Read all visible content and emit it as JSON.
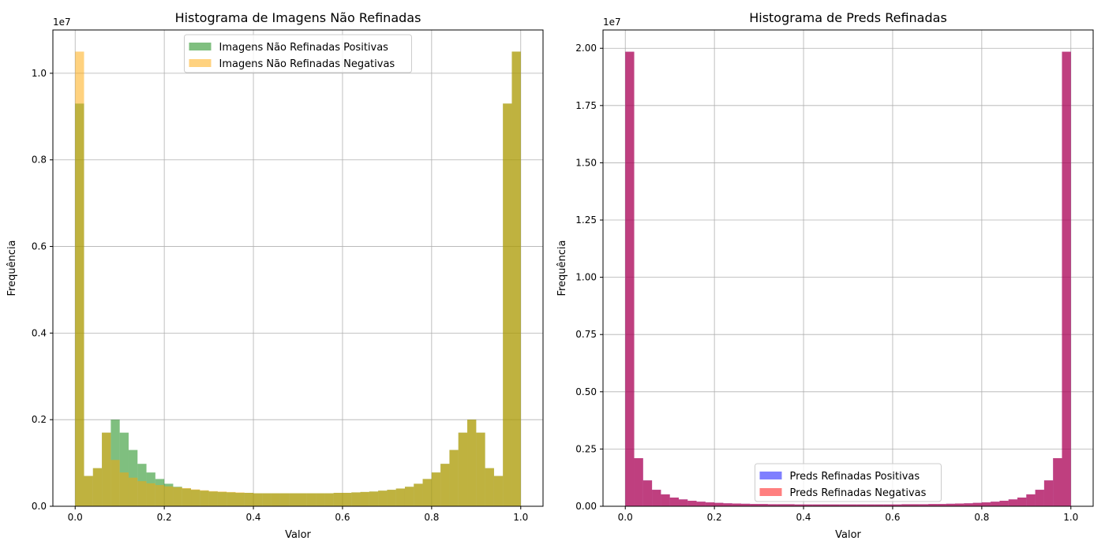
{
  "chart_data": [
    {
      "type": "bar",
      "title": "Histograma de Imagens Não Refinadas",
      "xlabel": "Valor",
      "ylabel": "Frequência",
      "y_offset_label": "1e7",
      "xlim": [
        -0.05,
        1.05
      ],
      "ylim": [
        0,
        1.1
      ],
      "xticks": [
        0.0,
        0.2,
        0.4,
        0.6,
        0.8,
        1.0
      ],
      "xtick_labels": [
        "0.0",
        "0.2",
        "0.4",
        "0.6",
        "0.8",
        "1.0"
      ],
      "yticks": [
        0.0,
        0.2,
        0.4,
        0.6,
        0.8,
        1.0
      ],
      "ytick_labels": [
        "0.0",
        "0.2",
        "0.4",
        "0.6",
        "0.8",
        "1.0"
      ],
      "grid": true,
      "legend_position": "top-center",
      "bins": 50,
      "series": [
        {
          "name": "Imagens Não Refinadas Positivas",
          "color": "#008000",
          "opacity": 0.5,
          "values": [
            0.93,
            0.07,
            0.088,
            0.17,
            0.2,
            0.17,
            0.13,
            0.098,
            0.078,
            0.063,
            0.052,
            0.045,
            0.041,
            0.038,
            0.036,
            0.034,
            0.033,
            0.032,
            0.031,
            0.031,
            0.03,
            0.03,
            0.03,
            0.03,
            0.03,
            0.03,
            0.03,
            0.03,
            0.03,
            0.031,
            0.031,
            0.032,
            0.033,
            0.034,
            0.036,
            0.038,
            0.041,
            0.045,
            0.052,
            0.063,
            0.078,
            0.098,
            0.13,
            0.17,
            0.2,
            0.17,
            0.088,
            0.07,
            0.93,
            1.05
          ]
        },
        {
          "name": "Imagens Não Refinadas Negativas",
          "color": "#FFA500",
          "opacity": 0.5,
          "values": [
            1.05,
            0.07,
            0.088,
            0.17,
            0.107,
            0.078,
            0.066,
            0.058,
            0.053,
            0.049,
            0.046,
            0.044,
            0.042,
            0.039,
            0.037,
            0.035,
            0.034,
            0.033,
            0.032,
            0.031,
            0.03,
            0.03,
            0.03,
            0.03,
            0.03,
            0.03,
            0.03,
            0.03,
            0.03,
            0.031,
            0.031,
            0.032,
            0.033,
            0.034,
            0.036,
            0.038,
            0.041,
            0.045,
            0.052,
            0.063,
            0.078,
            0.098,
            0.13,
            0.17,
            0.2,
            0.17,
            0.088,
            0.07,
            0.93,
            1.05
          ]
        }
      ]
    },
    {
      "type": "bar",
      "title": "Histograma de Preds Refinadas",
      "xlabel": "Valor",
      "ylabel": "Frequência",
      "y_offset_label": "1e7",
      "xlim": [
        -0.05,
        1.05
      ],
      "ylim": [
        0,
        2.08
      ],
      "xticks": [
        0.0,
        0.2,
        0.4,
        0.6,
        0.8,
        1.0
      ],
      "xtick_labels": [
        "0.0",
        "0.2",
        "0.4",
        "0.6",
        "0.8",
        "1.0"
      ],
      "yticks": [
        0.0,
        0.25,
        0.5,
        0.75,
        1.0,
        1.25,
        1.5,
        1.75,
        2.0
      ],
      "ytick_labels": [
        "0.00",
        "0.25",
        "0.50",
        "0.75",
        "1.00",
        "1.25",
        "1.50",
        "1.75",
        "2.00"
      ],
      "grid": true,
      "legend_position": "lower-center",
      "bins": 50,
      "series": [
        {
          "name": "Preds Refinadas Positivas",
          "color": "#0000FF",
          "opacity": 0.5,
          "values": [
            1.985,
            0.21,
            0.113,
            0.072,
            0.052,
            0.038,
            0.03,
            0.024,
            0.02,
            0.017,
            0.015,
            0.013,
            0.012,
            0.011,
            0.01,
            0.01,
            0.009,
            0.009,
            0.009,
            0.008,
            0.008,
            0.008,
            0.008,
            0.008,
            0.008,
            0.008,
            0.008,
            0.008,
            0.008,
            0.008,
            0.008,
            0.009,
            0.009,
            0.009,
            0.01,
            0.01,
            0.011,
            0.012,
            0.013,
            0.015,
            0.017,
            0.02,
            0.024,
            0.03,
            0.038,
            0.052,
            0.072,
            0.113,
            0.21,
            1.985
          ]
        },
        {
          "name": "Preds Refinadas Negativas",
          "color": "#FF0000",
          "opacity": 0.5,
          "values": [
            1.985,
            0.21,
            0.113,
            0.072,
            0.052,
            0.038,
            0.03,
            0.024,
            0.02,
            0.017,
            0.015,
            0.013,
            0.012,
            0.011,
            0.01,
            0.01,
            0.009,
            0.009,
            0.009,
            0.008,
            0.008,
            0.008,
            0.008,
            0.008,
            0.008,
            0.008,
            0.008,
            0.008,
            0.008,
            0.008,
            0.008,
            0.009,
            0.009,
            0.009,
            0.01,
            0.01,
            0.011,
            0.012,
            0.013,
            0.015,
            0.017,
            0.02,
            0.024,
            0.03,
            0.038,
            0.052,
            0.072,
            0.113,
            0.21,
            1.985
          ]
        }
      ]
    }
  ]
}
